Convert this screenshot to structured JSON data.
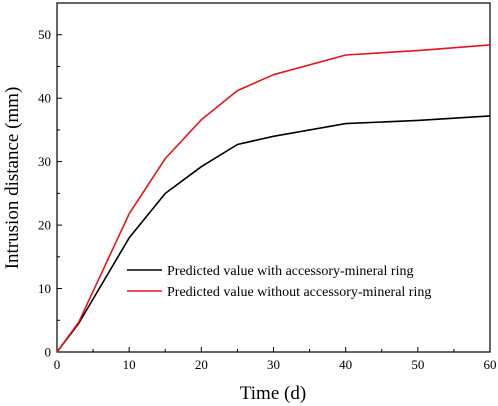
{
  "chart_data": {
    "type": "line",
    "xlabel": "Time (d)",
    "ylabel": "Intrusion distance (mm)",
    "xlim": [
      0,
      60
    ],
    "ylim": [
      0,
      55
    ],
    "xticks": [
      0,
      10,
      20,
      30,
      40,
      50,
      60
    ],
    "yticks": [
      0,
      10,
      20,
      30,
      40,
      50
    ],
    "grid": false,
    "legend_position": "lower-right",
    "series": [
      {
        "name": "Predicted value with accessory-mineral ring",
        "color": "#000000",
        "x": [
          0,
          3,
          10,
          15,
          20,
          25,
          30,
          40,
          50,
          60
        ],
        "y": [
          0,
          4.5,
          18,
          25,
          29.2,
          32.7,
          34,
          36,
          36.5,
          37.2
        ]
      },
      {
        "name": "Predicted value without accessory-mineral ring",
        "color": "#e8141c",
        "x": [
          0,
          3,
          10,
          15,
          20,
          25,
          30,
          40,
          50,
          60
        ],
        "y": [
          0,
          4.7,
          21.8,
          30.5,
          36.6,
          41.2,
          43.7,
          46.8,
          47.5,
          48.4
        ]
      }
    ]
  }
}
